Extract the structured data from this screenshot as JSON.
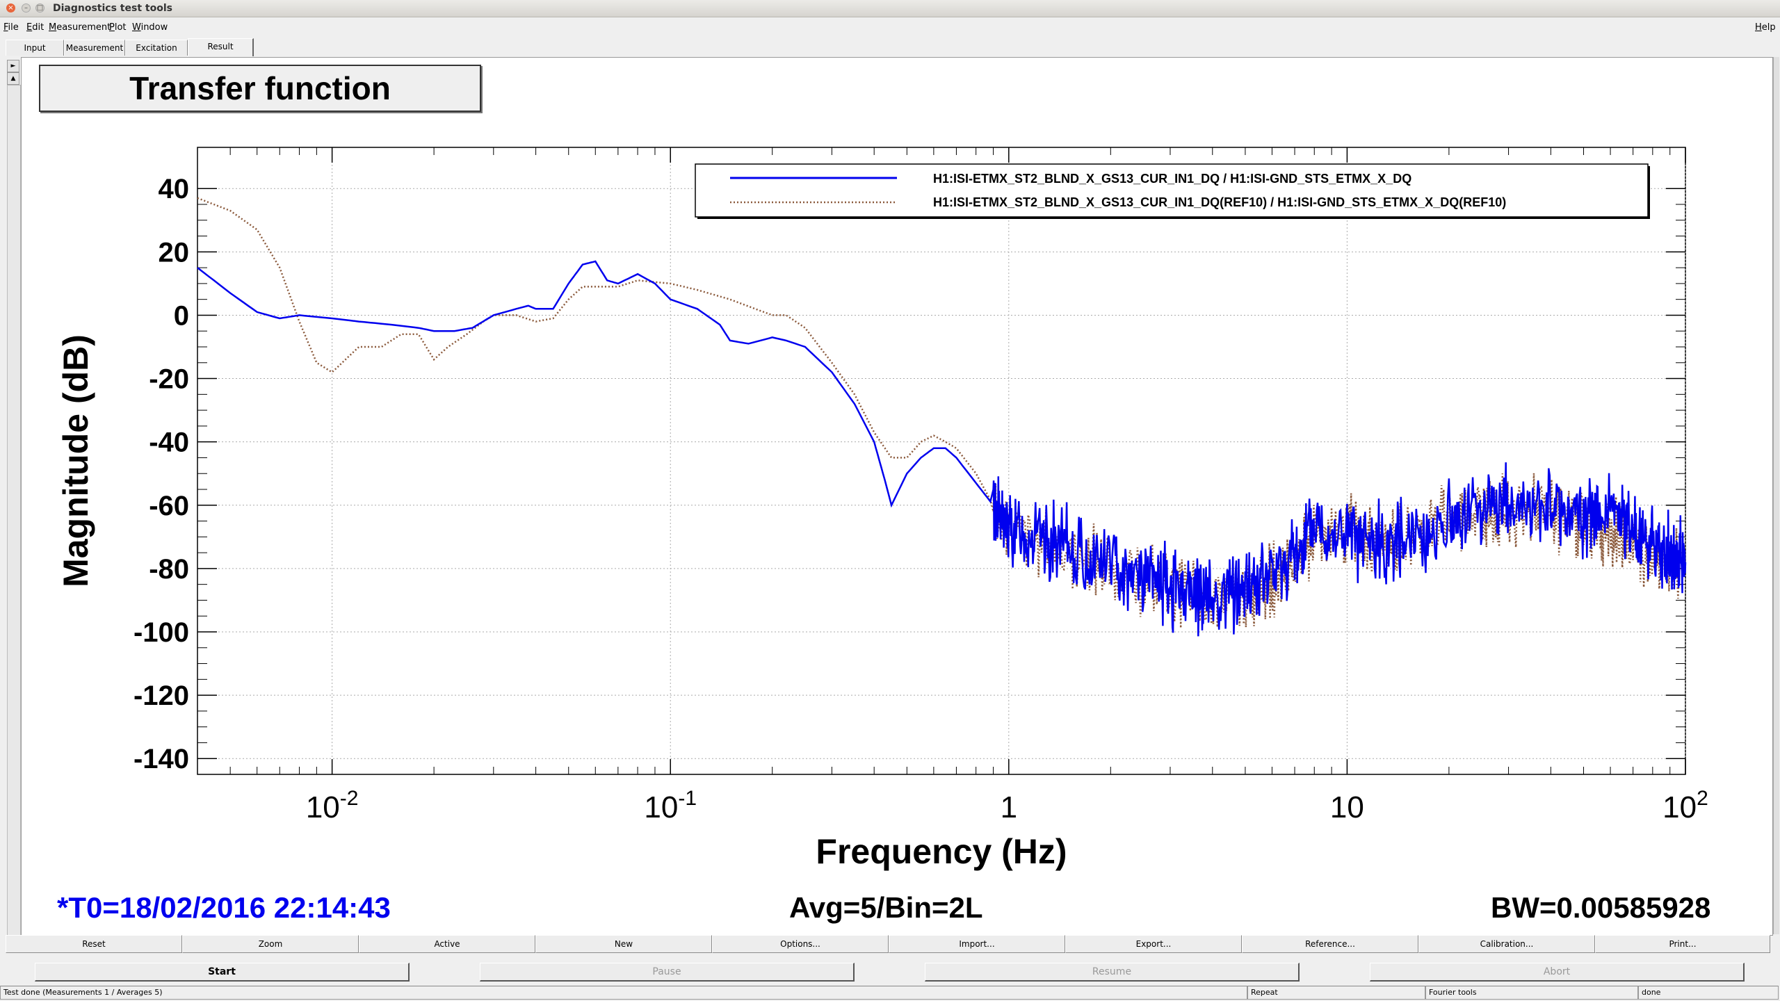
{
  "window": {
    "title": "Diagnostics test tools"
  },
  "menu": {
    "left": [
      {
        "label": "File",
        "u": "F",
        "rest": "ile"
      },
      {
        "label": "Edit",
        "u": "E",
        "rest": "dit"
      },
      {
        "label": "Measurement",
        "u": "M",
        "rest": "easurement"
      },
      {
        "label": "Plot",
        "u": "P",
        "rest": "lot"
      },
      {
        "label": "Window",
        "u": "W",
        "rest": "indow"
      }
    ],
    "help": {
      "label": "Help",
      "u": "H",
      "rest": "elp"
    }
  },
  "tabs": [
    "Input",
    "Measurement",
    "Excitation",
    "Result"
  ],
  "active_tab": "Result",
  "plot": {
    "title": "Transfer function",
    "info_left": "*T0=18/02/2016 22:14:43",
    "info_center": "Avg=5/Bin=2L",
    "info_right": "BW=0.00585928",
    "colors": {
      "series1": "#0000ee",
      "series2": "#8b5a3c",
      "info_left": "#0000ee"
    }
  },
  "chart_data": {
    "type": "line",
    "xlabel": "Frequency (Hz)",
    "ylabel": "Magnitude (dB)",
    "xscale": "log",
    "xlim": [
      0.004,
      100
    ],
    "ylim": [
      -145,
      53
    ],
    "grid": true,
    "legend_position": "top-right",
    "y_ticks": [
      40,
      20,
      0,
      -20,
      -40,
      -60,
      -80,
      -100,
      -120,
      -140
    ],
    "x_ticks": [
      {
        "base": "10",
        "exp": "-2",
        "value": 0.01
      },
      {
        "base": "10",
        "exp": "-1",
        "value": 0.1
      },
      {
        "base": "1",
        "exp": "",
        "value": 1
      },
      {
        "base": "10",
        "exp": "",
        "value": 10
      },
      {
        "base": "10",
        "exp": "2",
        "value": 100
      }
    ],
    "series": [
      {
        "name": "H1:ISI-ETMX_ST2_BLND_X_GS13_CUR_IN1_DQ / H1:ISI-GND_STS_ETMX_X_DQ",
        "style": "solid",
        "x": [
          0.004,
          0.005,
          0.006,
          0.007,
          0.008,
          0.01,
          0.012,
          0.015,
          0.018,
          0.02,
          0.023,
          0.026,
          0.03,
          0.035,
          0.038,
          0.04,
          0.045,
          0.05,
          0.055,
          0.06,
          0.065,
          0.07,
          0.08,
          0.09,
          0.1,
          0.12,
          0.14,
          0.15,
          0.17,
          0.2,
          0.22,
          0.25,
          0.3,
          0.35,
          0.4,
          0.43,
          0.45,
          0.5,
          0.55,
          0.6,
          0.65,
          0.7,
          0.8,
          0.9,
          1.0,
          1.2,
          1.5,
          2,
          2.5,
          3,
          3.5,
          4,
          5,
          6,
          7,
          8,
          10,
          12,
          15,
          20,
          25,
          30,
          40,
          50,
          60,
          70,
          80,
          90,
          100
        ],
        "y": [
          15,
          7,
          1,
          -1,
          0,
          -1,
          -2,
          -3,
          -4,
          -5,
          -5,
          -4,
          0,
          2,
          3,
          2,
          2,
          10,
          16,
          17,
          11,
          10,
          13,
          10,
          5,
          2,
          -3,
          -8,
          -9,
          -7,
          -8,
          -10,
          -18,
          -28,
          -40,
          -52,
          -60,
          -50,
          -45,
          -42,
          -42,
          -45,
          -53,
          -60,
          -68,
          -70,
          -74,
          -78,
          -82,
          -86,
          -88,
          -89,
          -86,
          -82,
          -76,
          -67,
          -70,
          -73,
          -70,
          -65,
          -60,
          -60,
          -62,
          -63,
          -63,
          -68,
          -72,
          -77,
          -78
        ]
      },
      {
        "name": "H1:ISI-ETMX_ST2_BLND_X_GS13_CUR_IN1_DQ(REF10) / H1:ISI-GND_STS_ETMX_X_DQ(REF10)",
        "style": "dotted",
        "x": [
          0.004,
          0.005,
          0.006,
          0.007,
          0.008,
          0.009,
          0.01,
          0.012,
          0.014,
          0.016,
          0.018,
          0.02,
          0.022,
          0.025,
          0.028,
          0.03,
          0.035,
          0.04,
          0.045,
          0.05,
          0.055,
          0.06,
          0.07,
          0.08,
          0.1,
          0.12,
          0.15,
          0.2,
          0.22,
          0.25,
          0.3,
          0.35,
          0.4,
          0.45,
          0.5,
          0.55,
          0.6,
          0.65,
          0.7,
          0.8,
          0.9,
          1.0,
          1.5,
          2,
          3,
          4,
          5,
          6,
          7,
          8,
          10,
          12,
          15,
          20,
          25,
          30,
          40,
          50,
          60,
          70,
          80,
          100
        ],
        "y": [
          37,
          33,
          27,
          15,
          -2,
          -15,
          -18,
          -10,
          -10,
          -6,
          -6,
          -14,
          -10,
          -6,
          -2,
          0,
          0,
          -2,
          -1,
          5,
          9,
          9,
          9,
          11,
          10,
          8,
          5,
          0,
          0,
          -4,
          -15,
          -25,
          -37,
          -45,
          -45,
          -40,
          -38,
          -40,
          -42,
          -50,
          -60,
          -68,
          -75,
          -80,
          -86,
          -90,
          -88,
          -84,
          -78,
          -68,
          -68,
          -73,
          -70,
          -65,
          -62,
          -62,
          -63,
          -65,
          -68,
          -72,
          -78,
          -80
        ]
      }
    ]
  },
  "buttons_row1": [
    "Reset",
    "Zoom",
    "Active",
    "New",
    "Options...",
    "Import...",
    "Export...",
    "Reference...",
    "Calibration...",
    "Print..."
  ],
  "buttons_row2": [
    {
      "label": "Start",
      "enabled": true
    },
    {
      "label": "Pause",
      "enabled": false
    },
    {
      "label": "Resume",
      "enabled": false
    },
    {
      "label": "Abort",
      "enabled": false
    }
  ],
  "status": {
    "message": "Test done (Measurements 1 / Averages 5)",
    "repeat": "Repeat",
    "tool": "Fourier tools",
    "state": "done"
  }
}
